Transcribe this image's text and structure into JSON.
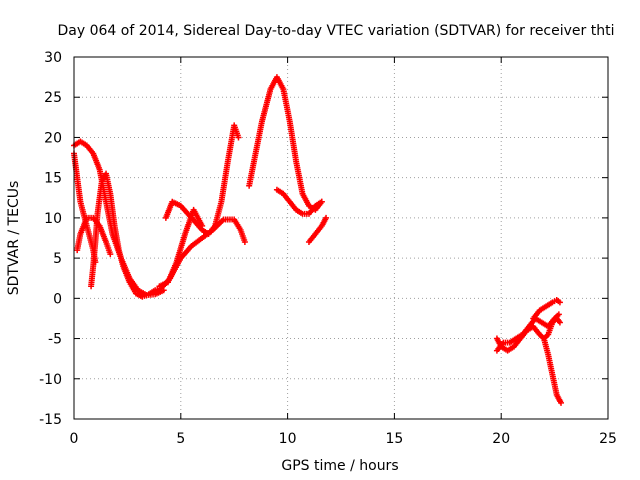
{
  "chart_data": {
    "type": "scatter",
    "title": "Day 064 of 2014, Sidereal Day-to-day VTEC variation (SDTVAR) for receiver thti",
    "xlabel": "GPS time / hours",
    "ylabel": "SDTVAR / TECUs",
    "xlim": [
      0,
      25
    ],
    "ylim": [
      -15,
      30
    ],
    "xticks": [
      0,
      5,
      10,
      15,
      20,
      25
    ],
    "yticks": [
      -15,
      -10,
      -5,
      0,
      5,
      10,
      15,
      20,
      25,
      30
    ],
    "grid": true,
    "marker": "plus",
    "color": "#ff0000",
    "series": [
      {
        "points": [
          [
            0.0,
            19.0
          ],
          [
            0.3,
            19.5
          ],
          [
            0.6,
            19.0
          ],
          [
            0.9,
            18.0
          ],
          [
            1.2,
            16.0
          ],
          [
            1.5,
            12.0
          ],
          [
            1.8,
            8.0
          ],
          [
            2.2,
            5.0
          ],
          [
            2.6,
            2.5
          ],
          [
            3.0,
            1.0
          ],
          [
            3.4,
            0.4
          ],
          [
            3.8,
            0.5
          ],
          [
            4.2,
            1.0
          ]
        ]
      },
      {
        "points": [
          [
            0.0,
            18.0
          ],
          [
            0.15,
            15.0
          ],
          [
            0.3,
            12.0
          ],
          [
            0.5,
            10.0
          ],
          [
            0.7,
            8.0
          ],
          [
            0.9,
            6.0
          ],
          [
            1.0,
            4.5
          ]
        ]
      },
      {
        "points": [
          [
            0.15,
            6.0
          ],
          [
            0.3,
            8.0
          ],
          [
            0.6,
            10.0
          ],
          [
            0.9,
            10.0
          ],
          [
            1.2,
            9.0
          ],
          [
            1.5,
            7.0
          ],
          [
            1.7,
            5.5
          ]
        ]
      },
      {
        "points": [
          [
            0.8,
            1.5
          ],
          [
            0.9,
            4.0
          ],
          [
            1.0,
            7.0
          ],
          [
            1.1,
            10.5
          ],
          [
            1.3,
            14.5
          ],
          [
            1.5,
            15.5
          ],
          [
            1.7,
            13.0
          ],
          [
            1.9,
            9.0
          ],
          [
            2.1,
            6.0
          ],
          [
            2.3,
            4.0
          ],
          [
            2.6,
            2.0
          ],
          [
            2.9,
            0.6
          ],
          [
            3.2,
            0.2
          ],
          [
            3.5,
            0.5
          ],
          [
            3.8,
            1.0
          ],
          [
            4.1,
            1.3
          ],
          [
            4.5,
            2.5
          ],
          [
            5.0,
            5.0
          ],
          [
            5.5,
            6.5
          ],
          [
            6.0,
            7.5
          ],
          [
            6.5,
            8.5
          ],
          [
            7.0,
            9.8
          ],
          [
            7.5,
            9.8
          ],
          [
            7.8,
            8.5
          ],
          [
            8.0,
            7.0
          ]
        ]
      },
      {
        "points": [
          [
            4.3,
            10.0
          ],
          [
            4.6,
            12.0
          ],
          [
            5.0,
            11.5
          ],
          [
            5.5,
            10.0
          ],
          [
            6.0,
            8.5
          ],
          [
            6.3,
            8.0
          ],
          [
            6.6,
            9.0
          ],
          [
            6.9,
            12.0
          ],
          [
            7.2,
            17.0
          ],
          [
            7.5,
            21.5
          ],
          [
            7.7,
            20.0
          ]
        ]
      },
      {
        "points": [
          [
            4.0,
            1.5
          ],
          [
            4.4,
            2.0
          ],
          [
            4.8,
            4.5
          ],
          [
            5.2,
            8.0
          ],
          [
            5.6,
            11.0
          ],
          [
            6.0,
            9.0
          ]
        ]
      },
      {
        "points": [
          [
            8.2,
            14.0
          ],
          [
            8.5,
            18.0
          ],
          [
            8.8,
            22.0
          ],
          [
            9.2,
            26.0
          ],
          [
            9.5,
            27.5
          ],
          [
            9.8,
            26.0
          ],
          [
            10.1,
            22.0
          ],
          [
            10.4,
            17.0
          ],
          [
            10.7,
            13.0
          ],
          [
            11.0,
            11.5
          ],
          [
            11.3,
            11.0
          ],
          [
            11.6,
            12.0
          ]
        ]
      },
      {
        "points": [
          [
            9.5,
            13.5
          ],
          [
            9.8,
            13.0
          ],
          [
            10.1,
            12.0
          ],
          [
            10.4,
            11.0
          ],
          [
            10.7,
            10.5
          ],
          [
            11.0,
            10.5
          ],
          [
            11.3,
            11.5
          ],
          [
            11.6,
            12.0
          ]
        ]
      },
      {
        "points": [
          [
            11.0,
            7.0
          ],
          [
            11.3,
            8.0
          ],
          [
            11.6,
            9.0
          ],
          [
            11.8,
            10.0
          ]
        ]
      },
      {
        "points": [
          [
            19.8,
            -5.0
          ],
          [
            20.0,
            -6.0
          ],
          [
            20.3,
            -6.5
          ],
          [
            20.6,
            -6.0
          ],
          [
            20.9,
            -5.0
          ],
          [
            21.2,
            -4.0
          ],
          [
            21.5,
            -3.5
          ],
          [
            21.8,
            -4.5
          ],
          [
            22.0,
            -5.0
          ],
          [
            22.2,
            -4.5
          ],
          [
            22.4,
            -3.0
          ],
          [
            22.6,
            -2.5
          ],
          [
            22.75,
            -3.0
          ]
        ]
      },
      {
        "points": [
          [
            19.8,
            -6.5
          ],
          [
            20.1,
            -5.5
          ],
          [
            20.4,
            -5.5
          ],
          [
            20.7,
            -5.0
          ],
          [
            21.0,
            -4.5
          ],
          [
            21.3,
            -3.5
          ],
          [
            21.6,
            -2.5
          ],
          [
            21.9,
            -3.0
          ],
          [
            22.2,
            -3.5
          ],
          [
            22.5,
            -2.5
          ],
          [
            22.7,
            -2.0
          ]
        ]
      },
      {
        "points": [
          [
            21.5,
            -2.5
          ],
          [
            21.8,
            -1.5
          ],
          [
            22.1,
            -1.0
          ],
          [
            22.4,
            -0.5
          ],
          [
            22.6,
            -0.2
          ],
          [
            22.75,
            -0.5
          ]
        ]
      },
      {
        "points": [
          [
            22.0,
            -5.0
          ],
          [
            22.2,
            -7.0
          ],
          [
            22.4,
            -9.5
          ],
          [
            22.6,
            -12.0
          ],
          [
            22.8,
            -13.0
          ]
        ]
      }
    ]
  }
}
